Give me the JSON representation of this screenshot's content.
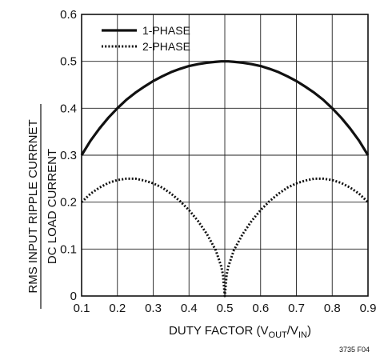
{
  "chart_data": {
    "type": "line",
    "title": "",
    "xlabel": {
      "prefix": "DUTY FACTOR (V",
      "sub1": "OUT",
      "mid": "/V",
      "sub2": "IN",
      "suffix": ")"
    },
    "ylabel": {
      "numerator": "RMS INPUT RIPPLE CURRNET",
      "denominator": "DC LOAD CURRENT"
    },
    "xlim": [
      0.1,
      0.9
    ],
    "ylim": [
      0,
      0.6
    ],
    "x_ticks": [
      "0.1",
      "0.2",
      "0.3",
      "0.4",
      "0.5",
      "0.6",
      "0.7",
      "0.8",
      "0.9"
    ],
    "y_ticks": [
      "0",
      "0.1",
      "0.2",
      "0.3",
      "0.4",
      "0.5",
      "0.6"
    ],
    "grid": true,
    "legend_position": "top-left",
    "x": [
      0.1,
      0.125,
      0.15,
      0.175,
      0.2,
      0.225,
      0.25,
      0.275,
      0.3,
      0.325,
      0.35,
      0.375,
      0.4,
      0.425,
      0.45,
      0.475,
      0.49,
      0.495,
      0.5,
      0.505,
      0.51,
      0.525,
      0.55,
      0.575,
      0.6,
      0.625,
      0.65,
      0.675,
      0.7,
      0.725,
      0.75,
      0.775,
      0.8,
      0.825,
      0.85,
      0.875,
      0.9
    ],
    "series": [
      {
        "name": "1-PHASE",
        "style": "solid",
        "values": [
          0.3,
          0.331,
          0.357,
          0.38,
          0.4,
          0.418,
          0.433,
          0.446,
          0.458,
          0.468,
          0.477,
          0.484,
          0.49,
          0.494,
          0.497,
          0.499,
          0.5,
          0.5,
          0.5,
          0.5,
          0.5,
          0.499,
          0.497,
          0.494,
          0.49,
          0.484,
          0.477,
          0.468,
          0.458,
          0.446,
          0.433,
          0.418,
          0.4,
          0.38,
          0.357,
          0.331,
          0.3
        ]
      },
      {
        "name": "2-PHASE",
        "style": "dotted",
        "values": [
          0.2,
          0.218,
          0.231,
          0.241,
          0.247,
          0.25,
          0.25,
          0.246,
          0.24,
          0.231,
          0.218,
          0.202,
          0.183,
          0.16,
          0.132,
          0.097,
          0.063,
          0.045,
          0.0,
          0.045,
          0.063,
          0.097,
          0.132,
          0.16,
          0.183,
          0.202,
          0.218,
          0.231,
          0.24,
          0.246,
          0.25,
          0.25,
          0.247,
          0.241,
          0.231,
          0.218,
          0.2
        ]
      }
    ],
    "figure_code": "3735 F04"
  }
}
